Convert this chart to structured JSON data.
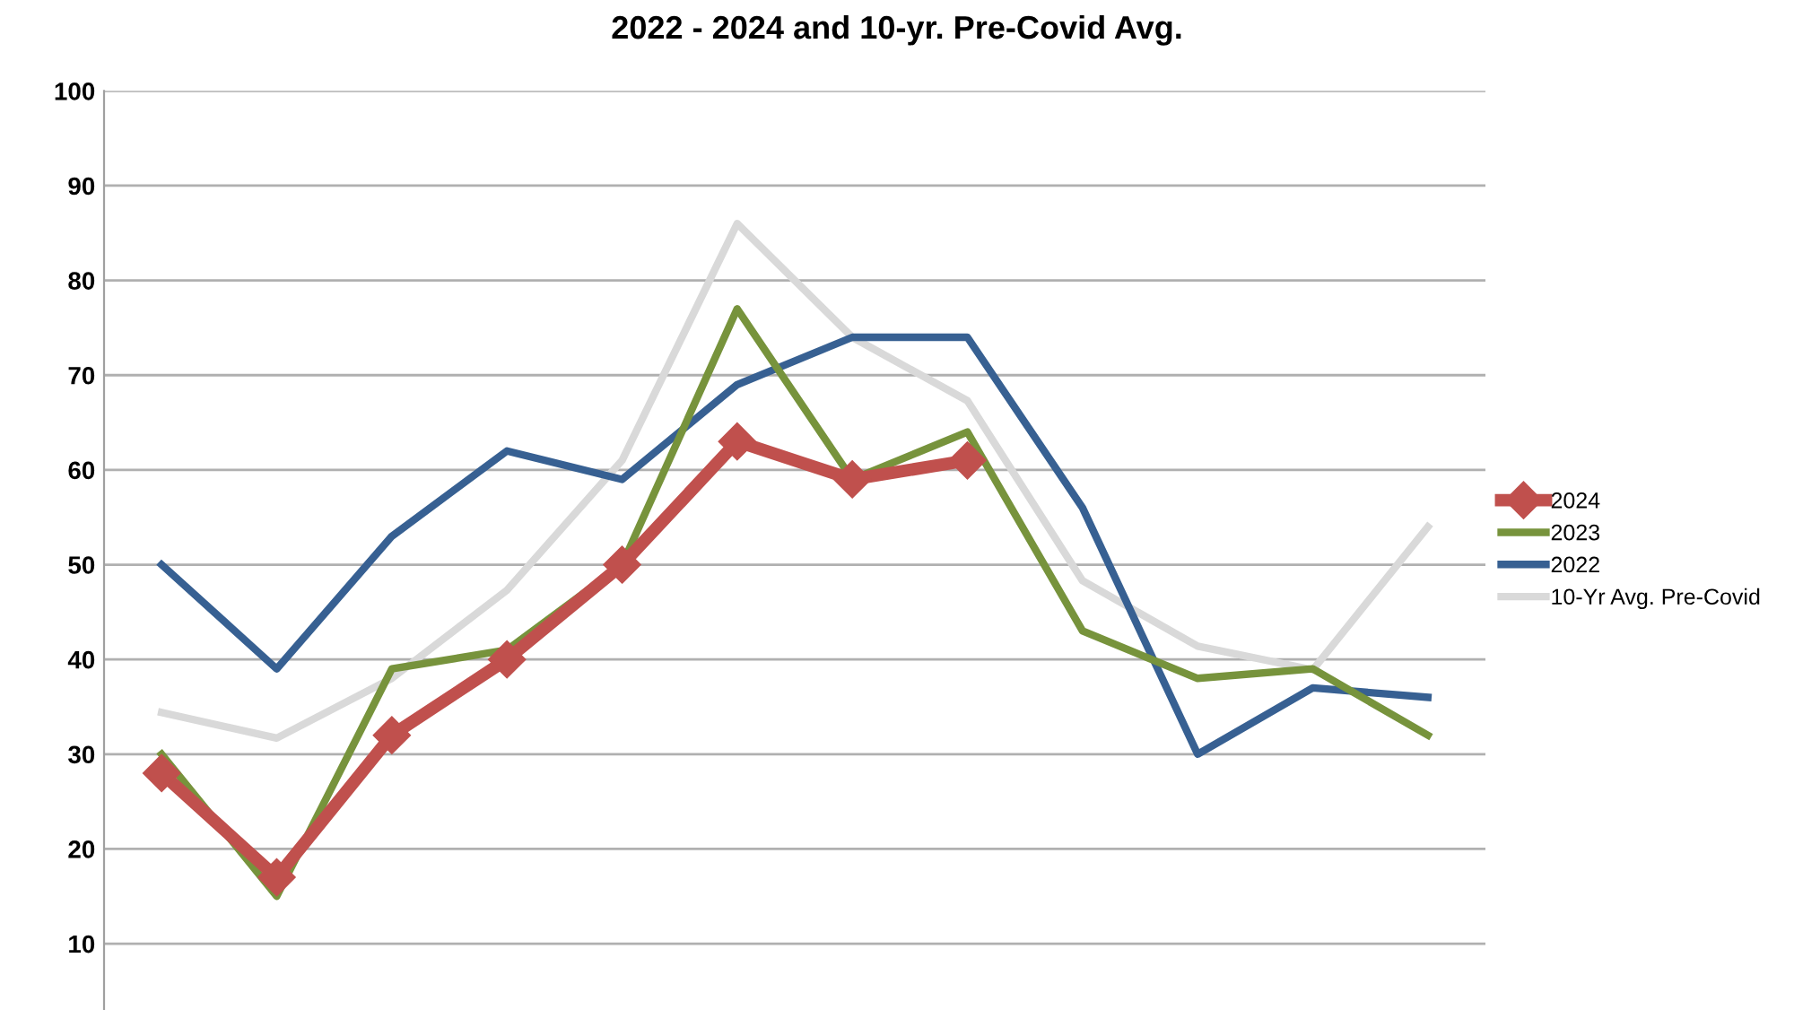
{
  "chart_data": {
    "type": "line",
    "title": "2022 - 2024 and 10-yr. Pre-Covid Avg.",
    "categories": [
      null,
      null,
      null,
      null,
      null,
      null,
      null,
      null,
      null,
      null,
      null,
      null
    ],
    "series": [
      {
        "name": "2024",
        "color": "#c0504d",
        "marker": "diamond",
        "values": [
          28,
          17,
          32,
          40,
          50,
          63,
          59,
          61,
          null,
          null,
          null,
          null
        ]
      },
      {
        "name": "2023",
        "color": "#77933c",
        "marker": "none",
        "values": [
          30,
          15,
          39,
          41,
          50,
          77,
          59,
          64,
          43,
          38,
          39,
          32
        ]
      },
      {
        "name": "2022",
        "color": "#376092",
        "marker": "none",
        "values": [
          50,
          39,
          53,
          62,
          59,
          69,
          74,
          74,
          56,
          30,
          37,
          36
        ]
      },
      {
        "name": "10-Yr Avg. Pre-Covid",
        "color": "#d9d9d9",
        "marker": "none",
        "values": [
          34.4,
          31.7,
          38,
          47.3,
          61,
          86,
          74,
          67.3,
          48.3,
          41.4,
          38.9,
          54
        ]
      }
    ],
    "ylim": [
      3,
      100
    ],
    "yticks": [
      10,
      20,
      30,
      40,
      50,
      60,
      70,
      80,
      90,
      100
    ],
    "grid": "y",
    "legend": "right",
    "line_style": "solid"
  }
}
